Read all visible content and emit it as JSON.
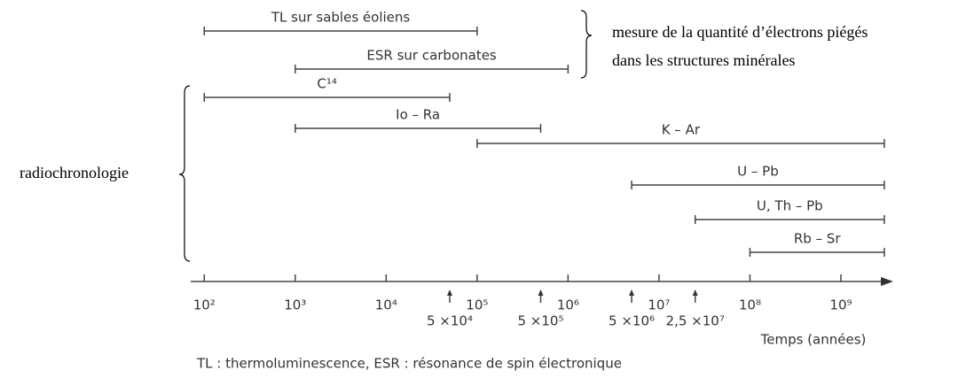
{
  "chart_data": {
    "type": "range",
    "series": [
      {
        "name": "TL sur sables éoliens",
        "values": [
          100,
          100000
        ]
      },
      {
        "name": "ESR sur carbonates",
        "values": [
          1000,
          1000000
        ]
      },
      {
        "name": "C¹⁴",
        "values": [
          100,
          50000
        ]
      },
      {
        "name": "Io – Ra",
        "values": [
          1000,
          500000
        ]
      },
      {
        "name": "K – Ar",
        "values": [
          100000,
          3000000000
        ]
      },
      {
        "name": "U – Pb",
        "values": [
          5000000,
          3000000000
        ]
      },
      {
        "name": "U, Th – Pb",
        "values": [
          25000000,
          3000000000
        ]
      },
      {
        "name": "Rb – Sr",
        "values": [
          100000000,
          3000000000
        ]
      }
    ],
    "xscale": "log",
    "xlim": [
      71,
      3600000000
    ],
    "xticks": [
      {
        "value": 100,
        "label": "10²"
      },
      {
        "value": 1000,
        "label": "10³"
      },
      {
        "value": 10000,
        "label": "10⁴"
      },
      {
        "value": 100000,
        "label": "10⁵"
      },
      {
        "value": 1000000,
        "label": "10⁶"
      },
      {
        "value": 10000000,
        "label": "10⁷"
      },
      {
        "value": 100000000,
        "label": "10⁸"
      },
      {
        "value": 1000000000,
        "label": "10⁹"
      }
    ],
    "xticks_marked": [
      {
        "value": 50000,
        "label": "5 ×10⁴"
      },
      {
        "value": 500000,
        "label": "5 ×10⁵"
      },
      {
        "value": 5000000,
        "label": "5 ×10⁶"
      },
      {
        "value": 25000000,
        "label": "2,5 ×10⁷"
      }
    ],
    "xlabel": "Temps (années)",
    "annotations": {
      "group_top": [
        "mesure de la quantité d’électrons piégés",
        "dans les structures minérales"
      ],
      "group_left": "radiochronologie"
    },
    "footnote": "TL : thermoluminescence, ESR : résonance de spin électronique"
  }
}
